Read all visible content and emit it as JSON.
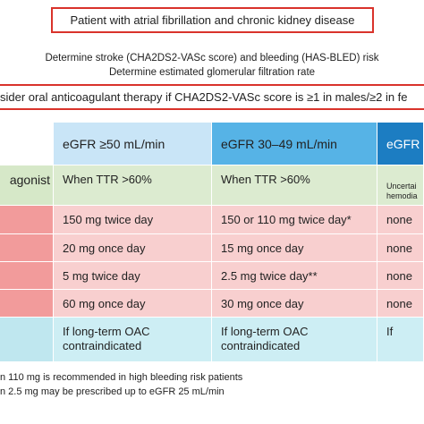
{
  "header": {
    "title": "Patient with atrial fibrillation and chronic kidney disease"
  },
  "steps": [
    "Determine stroke (CHA2DS2-VASc score) and bleeding (HAS-BLED) risk",
    "Determine estimated glomerular filtration rate"
  ],
  "recommendation": "sider oral anticoagulant therapy if CHA2DS2-VASc score is ≥1 in males/≥2 in fe",
  "table": {
    "columns": [
      "eGFR ≥50 mL/min",
      "eGFR 30–49 mL/min",
      "eGFR"
    ],
    "rows": [
      {
        "label": "agonist",
        "cells": [
          [
            "When TTR >60%"
          ],
          [
            "When TTR >60%"
          ],
          [
            "Uncertai",
            "hemodia"
          ]
        ]
      },
      {
        "cells": [
          [
            "150 mg twice day"
          ],
          [
            "150 or 110 mg twice day*"
          ],
          [
            "none"
          ]
        ]
      },
      {
        "cells": [
          [
            "20 mg once day"
          ],
          [
            "15 mg once day"
          ],
          [
            "none"
          ]
        ]
      },
      {
        "cells": [
          [
            "5 mg twice day"
          ],
          [
            "2.5 mg twice day**"
          ],
          [
            "none"
          ]
        ]
      },
      {
        "cells": [
          [
            "60 mg once day"
          ],
          [
            "30 mg once day"
          ],
          [
            "none"
          ]
        ]
      },
      {
        "cells": [
          [
            "If long-term OAC",
            "contraindicated"
          ],
          [
            "If long-term OAC",
            "contraindicated"
          ],
          [
            "If"
          ]
        ]
      }
    ]
  },
  "footnotes": [
    "n 110 mg is recommended in high bleeding risk patients",
    "n 2.5 mg may be prescribed up to eGFR 25 mL/min"
  ]
}
